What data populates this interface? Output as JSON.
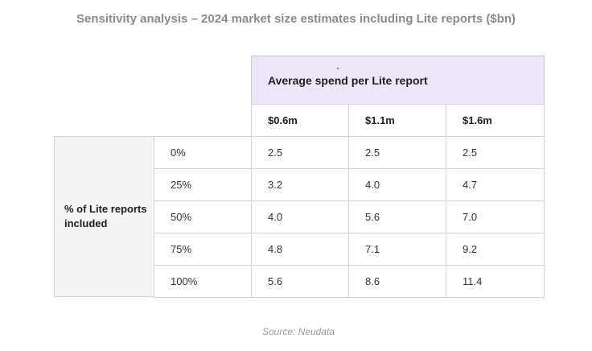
{
  "chart_data": {
    "type": "table",
    "title": "Sensitivity analysis – 2024 market size estimates including Lite reports ($bn)",
    "column_group_label": "Average spend per Lite report",
    "columns": [
      "$0.6m",
      "$1.1m",
      "$1.6m"
    ],
    "row_group_label": "% of Lite reports included",
    "rows": [
      "0%",
      "25%",
      "50%",
      "75%",
      "100%"
    ],
    "values": [
      [
        "2.5",
        "2.5",
        "2.5"
      ],
      [
        "3.2",
        "4.0",
        "4.7"
      ],
      [
        "4.0",
        "5.6",
        "7.0"
      ],
      [
        "4.8",
        "7.1",
        "9.2"
      ],
      [
        "5.6",
        "8.6",
        "11.4"
      ]
    ],
    "source": "Source: Neudata"
  },
  "colors": {
    "header_band": "#ede6f8",
    "side_label_bg": "#f4f4f4",
    "border": "#d2d2d2",
    "title": "#8a8a8a",
    "source": "#9a9a9a"
  }
}
